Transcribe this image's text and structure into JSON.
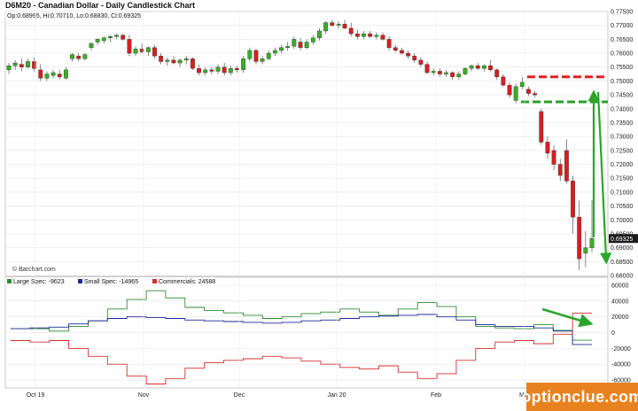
{
  "chart_data": {
    "type": "candlestick",
    "title": "D6M20 - Canadian Dollar - Daily Candlestick Chart",
    "ohlc_readout": "Op:0.68995, Hi:0.70710, Lo:0.68830, Cl:0.69325",
    "credit": "© Barchart.com",
    "last_price_label": "0.69325",
    "price_ylim": [
      0.68,
      0.775
    ],
    "price_ticks": [
      "0.77500",
      "0.77000",
      "0.76500",
      "0.76000",
      "0.75500",
      "0.75000",
      "0.74500",
      "0.74000",
      "0.73500",
      "0.73000",
      "0.72500",
      "0.72000",
      "0.71500",
      "0.71000",
      "0.70500",
      "0.70000",
      "0.69500",
      "0.69000",
      "0.68500",
      "0.68000"
    ],
    "x_ticks": [
      "Oct 19",
      "Nov",
      "Dec",
      "Jan 20",
      "Feb",
      "Mar"
    ],
    "candles": [
      {
        "o": 0.754,
        "h": 0.7565,
        "l": 0.7525,
        "c": 0.7555
      },
      {
        "o": 0.7555,
        "h": 0.7575,
        "l": 0.754,
        "c": 0.7565
      },
      {
        "o": 0.756,
        "h": 0.758,
        "l": 0.7535,
        "c": 0.755
      },
      {
        "o": 0.755,
        "h": 0.758,
        "l": 0.7545,
        "c": 0.757
      },
      {
        "o": 0.757,
        "h": 0.7585,
        "l": 0.7535,
        "c": 0.7545
      },
      {
        "o": 0.754,
        "h": 0.756,
        "l": 0.75,
        "c": 0.751
      },
      {
        "o": 0.751,
        "h": 0.7535,
        "l": 0.75,
        "c": 0.7525
      },
      {
        "o": 0.752,
        "h": 0.754,
        "l": 0.751,
        "c": 0.753
      },
      {
        "o": 0.7525,
        "h": 0.754,
        "l": 0.7505,
        "c": 0.7515
      },
      {
        "o": 0.751,
        "h": 0.755,
        "l": 0.7505,
        "c": 0.754
      },
      {
        "o": 0.758,
        "h": 0.76,
        "l": 0.757,
        "c": 0.7595
      },
      {
        "o": 0.759,
        "h": 0.76,
        "l": 0.757,
        "c": 0.758
      },
      {
        "o": 0.758,
        "h": 0.76,
        "l": 0.7575,
        "c": 0.7595
      },
      {
        "o": 0.762,
        "h": 0.764,
        "l": 0.761,
        "c": 0.7635
      },
      {
        "o": 0.764,
        "h": 0.7655,
        "l": 0.763,
        "c": 0.765
      },
      {
        "o": 0.7645,
        "h": 0.766,
        "l": 0.7635,
        "c": 0.7655
      },
      {
        "o": 0.7655,
        "h": 0.7665,
        "l": 0.764,
        "c": 0.766
      },
      {
        "o": 0.766,
        "h": 0.767,
        "l": 0.765,
        "c": 0.7665
      },
      {
        "o": 0.7665,
        "h": 0.767,
        "l": 0.7645,
        "c": 0.765
      },
      {
        "o": 0.765,
        "h": 0.7665,
        "l": 0.759,
        "c": 0.76
      },
      {
        "o": 0.76,
        "h": 0.7625,
        "l": 0.759,
        "c": 0.7615
      },
      {
        "o": 0.7615,
        "h": 0.7635,
        "l": 0.76,
        "c": 0.7605
      },
      {
        "o": 0.7605,
        "h": 0.7625,
        "l": 0.759,
        "c": 0.762
      },
      {
        "o": 0.762,
        "h": 0.763,
        "l": 0.758,
        "c": 0.759
      },
      {
        "o": 0.759,
        "h": 0.76,
        "l": 0.756,
        "c": 0.757
      },
      {
        "o": 0.757,
        "h": 0.7585,
        "l": 0.7555,
        "c": 0.7575
      },
      {
        "o": 0.7575,
        "h": 0.759,
        "l": 0.756,
        "c": 0.7565
      },
      {
        "o": 0.7565,
        "h": 0.758,
        "l": 0.755,
        "c": 0.7575
      },
      {
        "o": 0.7575,
        "h": 0.759,
        "l": 0.756,
        "c": 0.758
      },
      {
        "o": 0.758,
        "h": 0.7585,
        "l": 0.754,
        "c": 0.7545
      },
      {
        "o": 0.7545,
        "h": 0.756,
        "l": 0.752,
        "c": 0.753
      },
      {
        "o": 0.753,
        "h": 0.755,
        "l": 0.752,
        "c": 0.754
      },
      {
        "o": 0.754,
        "h": 0.755,
        "l": 0.7525,
        "c": 0.7535
      },
      {
        "o": 0.7535,
        "h": 0.756,
        "l": 0.7525,
        "c": 0.755
      },
      {
        "o": 0.755,
        "h": 0.7565,
        "l": 0.752,
        "c": 0.753
      },
      {
        "o": 0.753,
        "h": 0.7555,
        "l": 0.752,
        "c": 0.7545
      },
      {
        "o": 0.7545,
        "h": 0.7555,
        "l": 0.753,
        "c": 0.754
      },
      {
        "o": 0.754,
        "h": 0.759,
        "l": 0.753,
        "c": 0.758
      },
      {
        "o": 0.758,
        "h": 0.762,
        "l": 0.757,
        "c": 0.761
      },
      {
        "o": 0.761,
        "h": 0.7615,
        "l": 0.756,
        "c": 0.757
      },
      {
        "o": 0.757,
        "h": 0.759,
        "l": 0.756,
        "c": 0.758
      },
      {
        "o": 0.758,
        "h": 0.761,
        "l": 0.7575,
        "c": 0.76
      },
      {
        "o": 0.76,
        "h": 0.762,
        "l": 0.759,
        "c": 0.761
      },
      {
        "o": 0.761,
        "h": 0.763,
        "l": 0.76,
        "c": 0.762
      },
      {
        "o": 0.762,
        "h": 0.764,
        "l": 0.761,
        "c": 0.7625
      },
      {
        "o": 0.7625,
        "h": 0.766,
        "l": 0.7615,
        "c": 0.765
      },
      {
        "o": 0.764,
        "h": 0.7655,
        "l": 0.761,
        "c": 0.762
      },
      {
        "o": 0.762,
        "h": 0.765,
        "l": 0.7615,
        "c": 0.764
      },
      {
        "o": 0.764,
        "h": 0.7665,
        "l": 0.763,
        "c": 0.7655
      },
      {
        "o": 0.7655,
        "h": 0.769,
        "l": 0.7645,
        "c": 0.768
      },
      {
        "o": 0.768,
        "h": 0.7715,
        "l": 0.767,
        "c": 0.771
      },
      {
        "o": 0.771,
        "h": 0.772,
        "l": 0.7695,
        "c": 0.77
      },
      {
        "o": 0.77,
        "h": 0.7715,
        "l": 0.769,
        "c": 0.7705
      },
      {
        "o": 0.7705,
        "h": 0.772,
        "l": 0.7685,
        "c": 0.769
      },
      {
        "o": 0.769,
        "h": 0.771,
        "l": 0.766,
        "c": 0.767
      },
      {
        "o": 0.767,
        "h": 0.7685,
        "l": 0.765,
        "c": 0.766
      },
      {
        "o": 0.766,
        "h": 0.768,
        "l": 0.765,
        "c": 0.767
      },
      {
        "o": 0.767,
        "h": 0.768,
        "l": 0.7655,
        "c": 0.766
      },
      {
        "o": 0.766,
        "h": 0.7675,
        "l": 0.765,
        "c": 0.7665
      },
      {
        "o": 0.7665,
        "h": 0.7675,
        "l": 0.7645,
        "c": 0.765
      },
      {
        "o": 0.765,
        "h": 0.766,
        "l": 0.761,
        "c": 0.762
      },
      {
        "o": 0.762,
        "h": 0.763,
        "l": 0.7605,
        "c": 0.761
      },
      {
        "o": 0.761,
        "h": 0.762,
        "l": 0.7595,
        "c": 0.76
      },
      {
        "o": 0.76,
        "h": 0.761,
        "l": 0.758,
        "c": 0.759
      },
      {
        "o": 0.759,
        "h": 0.76,
        "l": 0.7565,
        "c": 0.7575
      },
      {
        "o": 0.7575,
        "h": 0.7585,
        "l": 0.755,
        "c": 0.756
      },
      {
        "o": 0.756,
        "h": 0.757,
        "l": 0.7525,
        "c": 0.753
      },
      {
        "o": 0.753,
        "h": 0.7545,
        "l": 0.752,
        "c": 0.7535
      },
      {
        "o": 0.7535,
        "h": 0.7545,
        "l": 0.7515,
        "c": 0.7525
      },
      {
        "o": 0.7525,
        "h": 0.754,
        "l": 0.7515,
        "c": 0.753
      },
      {
        "o": 0.753,
        "h": 0.7535,
        "l": 0.7505,
        "c": 0.7515
      },
      {
        "o": 0.7515,
        "h": 0.7535,
        "l": 0.7505,
        "c": 0.7525
      },
      {
        "o": 0.7525,
        "h": 0.755,
        "l": 0.752,
        "c": 0.7545
      },
      {
        "o": 0.7545,
        "h": 0.756,
        "l": 0.7535,
        "c": 0.7555
      },
      {
        "o": 0.7555,
        "h": 0.7565,
        "l": 0.754,
        "c": 0.7545
      },
      {
        "o": 0.7545,
        "h": 0.756,
        "l": 0.7535,
        "c": 0.7555
      },
      {
        "o": 0.7555,
        "h": 0.7575,
        "l": 0.7535,
        "c": 0.754
      },
      {
        "o": 0.754,
        "h": 0.7545,
        "l": 0.7505,
        "c": 0.7515
      },
      {
        "o": 0.7515,
        "h": 0.7525,
        "l": 0.748,
        "c": 0.7485
      },
      {
        "o": 0.7485,
        "h": 0.7495,
        "l": 0.744,
        "c": 0.745
      },
      {
        "o": 0.743,
        "h": 0.749,
        "l": 0.742,
        "c": 0.748
      },
      {
        "o": 0.748,
        "h": 0.7515,
        "l": 0.747,
        "c": 0.7495
      },
      {
        "o": 0.747,
        "h": 0.748,
        "l": 0.7445,
        "c": 0.7455
      },
      {
        "o": 0.7455,
        "h": 0.7465,
        "l": 0.744,
        "c": 0.745
      },
      {
        "o": 0.739,
        "h": 0.74,
        "l": 0.727,
        "c": 0.728
      },
      {
        "o": 0.728,
        "h": 0.73,
        "l": 0.722,
        "c": 0.724
      },
      {
        "o": 0.725,
        "h": 0.727,
        "l": 0.718,
        "c": 0.72
      },
      {
        "o": 0.72,
        "h": 0.722,
        "l": 0.714,
        "c": 0.716
      },
      {
        "o": 0.725,
        "h": 0.729,
        "l": 0.713,
        "c": 0.714
      },
      {
        "o": 0.714,
        "h": 0.716,
        "l": 0.695,
        "c": 0.701
      },
      {
        "o": 0.701,
        "h": 0.707,
        "l": 0.682,
        "c": 0.686
      },
      {
        "o": 0.688,
        "h": 0.696,
        "l": 0.683,
        "c": 0.69
      },
      {
        "o": 0.69,
        "h": 0.7071,
        "l": 0.6883,
        "c": 0.6933
      }
    ],
    "cot_ylim": [
      -70000,
      60000
    ],
    "cot_ticks": [
      "60000",
      "40000",
      "20000",
      "0",
      "-20000",
      "-40000",
      "-60000"
    ],
    "cot_legend": [
      {
        "name": "Large Spec: -9623",
        "color": "#2e8b2e"
      },
      {
        "name": "Small Spec: -14965",
        "color": "#1c2a9a"
      },
      {
        "name": "Commercials: 24588",
        "color": "#d2302c"
      }
    ],
    "cot_series": [
      {
        "color": "#2e8b2e",
        "values": [
          5000,
          5000,
          2000,
          8000,
          15000,
          30000,
          42000,
          53000,
          44000,
          32000,
          28000,
          25000,
          22000,
          18000,
          20000,
          24000,
          26000,
          30000,
          26000,
          22000,
          30000,
          38000,
          33000,
          20000,
          8000,
          6000,
          5000,
          10000,
          3000,
          -9623
        ]
      },
      {
        "color": "#1c2a9a",
        "values": [
          5000,
          6000,
          7000,
          11000,
          15000,
          18000,
          20000,
          19000,
          18000,
          16000,
          15000,
          14000,
          13000,
          12000,
          13000,
          15000,
          16000,
          18000,
          20000,
          21000,
          22000,
          23000,
          20000,
          16000,
          10000,
          8000,
          8000,
          6000,
          2000,
          -14965
        ]
      },
      {
        "color": "#d2302c",
        "values": [
          -10000,
          -12000,
          -10000,
          -20000,
          -30000,
          -40000,
          -55000,
          -65000,
          -58000,
          -45000,
          -38000,
          -35000,
          -33000,
          -30000,
          -32000,
          -36000,
          -40000,
          -44000,
          -46000,
          -42000,
          -50000,
          -58000,
          -52000,
          -35000,
          -20000,
          -12000,
          -10000,
          -14000,
          -2000,
          24588
        ]
      }
    ],
    "annotations": {
      "resistance_price": 0.7515,
      "support_price": 0.7425,
      "resistance_color": "#e02020",
      "support_color": "#28a028",
      "arrow_color": "#2aa52a"
    }
  },
  "watermark": "optionclue.com"
}
